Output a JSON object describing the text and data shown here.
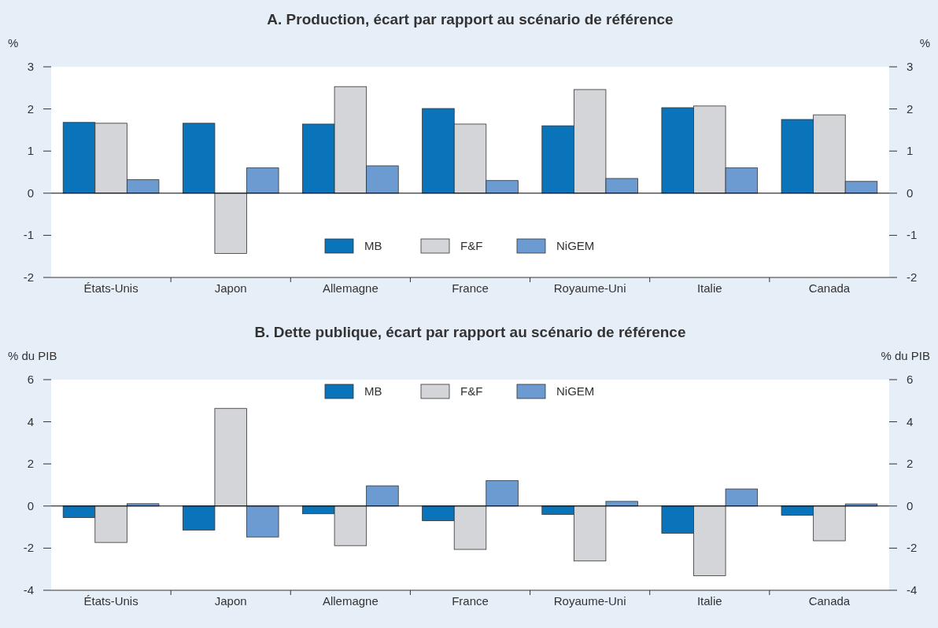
{
  "chart_data": [
    {
      "type": "bar",
      "title": "A. Production, écart par rapport au scénario de référence",
      "ylabel": "%",
      "y2label": "%",
      "categories": [
        "États-Unis",
        "Japon",
        "Allemagne",
        "France",
        "Royaume-Uni",
        "Italie",
        "Canada"
      ],
      "series": [
        {
          "name": "MB",
          "color": "#0a74bb",
          "values": [
            1.68,
            1.66,
            1.64,
            2.01,
            1.6,
            2.03,
            1.75
          ]
        },
        {
          "name": "F&F",
          "color": "#d3d5d8",
          "values": [
            1.66,
            -1.43,
            2.53,
            1.64,
            2.46,
            2.07,
            1.86
          ]
        },
        {
          "name": "NiGEM",
          "color": "#6c9bd2",
          "values": [
            0.32,
            0.6,
            0.65,
            0.3,
            0.35,
            0.6,
            0.28
          ]
        }
      ],
      "ylim": [
        -2,
        3
      ],
      "yticks": [
        -2,
        -1,
        0,
        1,
        2,
        3
      ],
      "y2lim": [
        -2,
        3
      ],
      "y2ticks": [
        -2,
        -1,
        0,
        1,
        2,
        3
      ],
      "ref_lines": [
        {
          "axis": "y",
          "value": 0,
          "color": "#000000"
        }
      ],
      "legend": "bottom"
    },
    {
      "type": "bar",
      "title": "B. Dette publique, écart par rapport au scénario de référence",
      "ylabel": "% du PIB",
      "y2label": "% du PIB",
      "categories": [
        "États-Unis",
        "Japon",
        "Allemagne",
        "France",
        "Royaume-Uni",
        "Italie",
        "Canada"
      ],
      "series": [
        {
          "name": "MB",
          "color": "#0a74bb",
          "values": [
            -0.55,
            -1.14,
            -0.37,
            -0.7,
            -0.4,
            -1.29,
            -0.44
          ]
        },
        {
          "name": "F&F",
          "color": "#d3d5d8",
          "values": [
            -1.73,
            4.63,
            -1.88,
            -2.06,
            -2.61,
            -3.31,
            -1.65
          ]
        },
        {
          "name": "NiGEM",
          "color": "#6c9bd2",
          "values": [
            0.11,
            -1.47,
            0.96,
            1.21,
            0.22,
            0.81,
            0.1
          ]
        }
      ],
      "ylim": [
        -4,
        6
      ],
      "yticks": [
        -4,
        -2,
        0,
        2,
        4,
        6
      ],
      "y2lim": [
        -4,
        6
      ],
      "y2ticks": [
        -4,
        -2,
        0,
        2,
        4,
        6
      ],
      "ref_lines": [
        {
          "axis": "y",
          "value": 0,
          "color": "#000000"
        }
      ],
      "legend": "top"
    }
  ]
}
